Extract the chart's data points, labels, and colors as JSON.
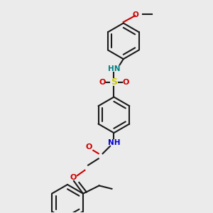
{
  "background_color": "#ebebeb",
  "bond_color": "#1a1a1a",
  "figsize": [
    3.0,
    3.0
  ],
  "dpi": 100,
  "atoms": {
    "N_sulfonamide": {
      "color": "#008080",
      "label": "HN"
    },
    "S": {
      "color": "#cccc00",
      "label": "S"
    },
    "O_sulfonyl": {
      "color": "#cc0000",
      "label": "O"
    },
    "N_amide": {
      "color": "#0000cc",
      "label": "NH"
    },
    "O_amide": {
      "color": "#cc0000",
      "label": "O"
    },
    "O_ether_top": {
      "color": "#cc0000",
      "label": "O"
    },
    "O_ether_bot": {
      "color": "#cc0000",
      "label": "O"
    }
  }
}
